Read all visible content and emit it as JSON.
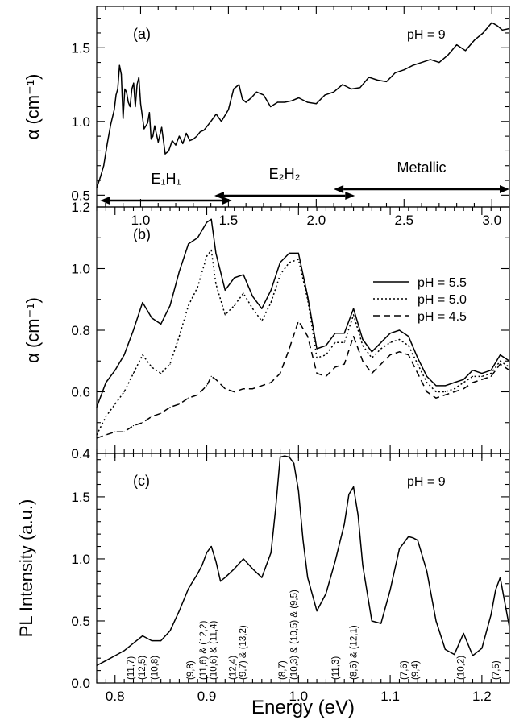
{
  "figure": {
    "xlabel_bottom": "Energy (eV)"
  },
  "chart_data": [
    {
      "panel": "(a)",
      "type": "line",
      "annotation": "pH = 9",
      "ylabel": "α (cm⁻¹)",
      "xlim": [
        0.75,
        3.1
      ],
      "ylim": [
        0.42,
        1.78
      ],
      "xticks": [
        1.0,
        1.5,
        2.0,
        2.5,
        3.0
      ],
      "xtick_labels": [
        "1.0",
        "1.5",
        "2.0",
        "2.5",
        "3.0"
      ],
      "yticks": [
        0.5,
        1.0,
        1.5
      ],
      "ytick_labels": [
        "0.5",
        "1.0",
        "1.5"
      ],
      "regions": [
        {
          "label": "E₁H₁",
          "x_start": 0.77,
          "x_end": 1.52
        },
        {
          "label": "E₂H₂",
          "x_start": 1.42,
          "x_end": 2.22
        },
        {
          "label": "Metallic",
          "x_start": 2.1,
          "x_end": 3.1
        }
      ],
      "series": [
        {
          "style": "solid",
          "x": [
            0.75,
            0.77,
            0.79,
            0.81,
            0.83,
            0.85,
            0.86,
            0.87,
            0.88,
            0.89,
            0.9,
            0.91,
            0.92,
            0.93,
            0.94,
            0.95,
            0.96,
            0.97,
            0.98,
            0.99,
            1.0,
            1.02,
            1.04,
            1.05,
            1.06,
            1.07,
            1.08,
            1.1,
            1.12,
            1.14,
            1.16,
            1.18,
            1.2,
            1.22,
            1.24,
            1.26,
            1.28,
            1.3,
            1.32,
            1.34,
            1.36,
            1.38,
            1.4,
            1.43,
            1.46,
            1.5,
            1.53,
            1.56,
            1.58,
            1.6,
            1.63,
            1.66,
            1.7,
            1.74,
            1.78,
            1.82,
            1.86,
            1.9,
            1.95,
            2.0,
            2.05,
            2.1,
            2.15,
            2.2,
            2.25,
            2.3,
            2.35,
            2.4,
            2.45,
            2.5,
            2.55,
            2.6,
            2.65,
            2.7,
            2.75,
            2.8,
            2.85,
            2.9,
            2.95,
            3.0,
            3.03,
            3.06,
            3.1
          ],
          "y": [
            0.55,
            0.62,
            0.7,
            0.85,
            0.98,
            1.08,
            1.18,
            1.22,
            1.38,
            1.32,
            1.02,
            1.22,
            1.2,
            1.13,
            1.1,
            1.22,
            1.26,
            1.1,
            1.25,
            1.3,
            1.12,
            0.95,
            0.99,
            1.06,
            0.88,
            0.9,
            0.97,
            0.86,
            0.96,
            0.78,
            0.8,
            0.87,
            0.84,
            0.9,
            0.85,
            0.92,
            0.87,
            0.88,
            0.9,
            0.93,
            0.94,
            0.97,
            1.0,
            1.05,
            1.0,
            1.08,
            1.22,
            1.25,
            1.15,
            1.13,
            1.16,
            1.2,
            1.18,
            1.1,
            1.13,
            1.13,
            1.14,
            1.16,
            1.13,
            1.12,
            1.18,
            1.2,
            1.25,
            1.22,
            1.23,
            1.3,
            1.28,
            1.27,
            1.33,
            1.35,
            1.38,
            1.4,
            1.42,
            1.4,
            1.45,
            1.52,
            1.48,
            1.55,
            1.6,
            1.67,
            1.65,
            1.62,
            1.63
          ]
        }
      ]
    },
    {
      "panel": "(b)",
      "type": "line",
      "ylabel": "α (cm⁻¹)",
      "xlim": [
        0.78,
        1.23
      ],
      "ylim": [
        0.4,
        1.2
      ],
      "yticks": [
        0.4,
        0.6,
        0.8,
        1.0,
        1.2
      ],
      "ytick_labels": [
        "0.4",
        "0.6",
        "0.8",
        "1.0",
        "1.2"
      ],
      "x": [
        0.78,
        0.79,
        0.8,
        0.81,
        0.82,
        0.83,
        0.84,
        0.85,
        0.86,
        0.87,
        0.88,
        0.89,
        0.9,
        0.905,
        0.91,
        0.92,
        0.93,
        0.94,
        0.95,
        0.96,
        0.97,
        0.98,
        0.99,
        1.0,
        1.01,
        1.02,
        1.03,
        1.04,
        1.05,
        1.06,
        1.07,
        1.08,
        1.09,
        1.1,
        1.11,
        1.12,
        1.13,
        1.14,
        1.15,
        1.16,
        1.17,
        1.18,
        1.19,
        1.2,
        1.21,
        1.22,
        1.23
      ],
      "series": [
        {
          "name": "pH = 5.5",
          "style": "solid",
          "values": [
            0.55,
            0.63,
            0.67,
            0.72,
            0.8,
            0.89,
            0.84,
            0.82,
            0.88,
            0.99,
            1.08,
            1.1,
            1.15,
            1.16,
            1.05,
            0.93,
            0.97,
            0.98,
            0.91,
            0.87,
            0.93,
            1.02,
            1.05,
            1.05,
            0.91,
            0.74,
            0.75,
            0.79,
            0.79,
            0.87,
            0.77,
            0.73,
            0.76,
            0.79,
            0.8,
            0.78,
            0.71,
            0.65,
            0.62,
            0.62,
            0.63,
            0.64,
            0.67,
            0.66,
            0.67,
            0.72,
            0.7
          ]
        },
        {
          "name": "pH = 5.0",
          "style": "dotted",
          "values": [
            0.46,
            0.52,
            0.56,
            0.6,
            0.66,
            0.72,
            0.68,
            0.66,
            0.69,
            0.78,
            0.88,
            0.94,
            1.04,
            1.06,
            0.95,
            0.85,
            0.88,
            0.92,
            0.87,
            0.83,
            0.89,
            0.98,
            1.02,
            1.03,
            0.9,
            0.71,
            0.72,
            0.76,
            0.76,
            0.85,
            0.75,
            0.71,
            0.74,
            0.76,
            0.77,
            0.75,
            0.69,
            0.63,
            0.6,
            0.6,
            0.61,
            0.63,
            0.65,
            0.65,
            0.66,
            0.7,
            0.68
          ]
        },
        {
          "name": "pH = 4.5",
          "style": "dashed",
          "values": [
            0.45,
            0.46,
            0.47,
            0.47,
            0.49,
            0.5,
            0.52,
            0.53,
            0.55,
            0.56,
            0.58,
            0.59,
            0.62,
            0.65,
            0.64,
            0.61,
            0.6,
            0.61,
            0.61,
            0.62,
            0.63,
            0.66,
            0.74,
            0.83,
            0.78,
            0.66,
            0.65,
            0.68,
            0.69,
            0.78,
            0.7,
            0.66,
            0.69,
            0.72,
            0.73,
            0.72,
            0.66,
            0.6,
            0.58,
            0.59,
            0.6,
            0.61,
            0.63,
            0.64,
            0.65,
            0.69,
            0.67
          ]
        }
      ]
    },
    {
      "panel": "(c)",
      "type": "line",
      "annotation": "pH = 9",
      "ylabel": "PL Intensity (a.u.)",
      "xlabel": "Energy (eV)",
      "xlim": [
        0.78,
        1.23
      ],
      "ylim": [
        0.0,
        1.85
      ],
      "xticks": [
        0.8,
        0.9,
        1.0,
        1.1,
        1.2
      ],
      "xtick_labels": [
        "0.8",
        "0.9",
        "1.0",
        "1.1",
        "1.2"
      ],
      "yticks": [
        0.0,
        0.5,
        1.0,
        1.5
      ],
      "ytick_labels": [
        "0.0",
        "0.5",
        "1.0",
        "1.5"
      ],
      "series": [
        {
          "style": "solid",
          "x": [
            0.78,
            0.79,
            0.8,
            0.81,
            0.82,
            0.83,
            0.84,
            0.85,
            0.86,
            0.87,
            0.88,
            0.89,
            0.895,
            0.9,
            0.905,
            0.91,
            0.915,
            0.92,
            0.93,
            0.94,
            0.95,
            0.96,
            0.97,
            0.975,
            0.98,
            0.985,
            0.99,
            0.995,
            1.0,
            1.005,
            1.01,
            1.02,
            1.03,
            1.04,
            1.05,
            1.055,
            1.06,
            1.065,
            1.07,
            1.08,
            1.09,
            1.1,
            1.11,
            1.12,
            1.125,
            1.13,
            1.14,
            1.15,
            1.16,
            1.17,
            1.18,
            1.19,
            1.2,
            1.21,
            1.215,
            1.22,
            1.23
          ],
          "y": [
            0.14,
            0.18,
            0.22,
            0.26,
            0.32,
            0.38,
            0.34,
            0.34,
            0.42,
            0.58,
            0.76,
            0.88,
            0.95,
            1.05,
            1.1,
            0.98,
            0.82,
            0.85,
            0.92,
            1.0,
            0.92,
            0.85,
            1.05,
            1.4,
            1.82,
            1.83,
            1.82,
            1.77,
            1.55,
            1.15,
            0.85,
            0.58,
            0.72,
            0.98,
            1.28,
            1.52,
            1.58,
            1.35,
            0.95,
            0.5,
            0.48,
            0.75,
            1.08,
            1.18,
            1.17,
            1.15,
            0.9,
            0.5,
            0.27,
            0.23,
            0.4,
            0.22,
            0.28,
            0.55,
            0.75,
            0.85,
            0.45
          ]
        }
      ],
      "peak_assignments": [
        {
          "label": "(11,7)",
          "x": 0.817
        },
        {
          "label": "(12,5)",
          "x": 0.829
        },
        {
          "label": "(10,8)",
          "x": 0.843
        },
        {
          "label": "(9,8)",
          "x": 0.882
        },
        {
          "label": "(11,6) & (12,2)",
          "x": 0.896
        },
        {
          "label": "(10,6) & (11,4)",
          "x": 0.907
        },
        {
          "label": "(12,4)",
          "x": 0.928
        },
        {
          "label": "(9,7) & (13,2)",
          "x": 0.939
        },
        {
          "label": "(8,7)",
          "x": 0.982
        },
        {
          "label": "(10,3) & (10,5) & (9,5)",
          "x": 0.995
        },
        {
          "label": "(11,3)",
          "x": 1.04
        },
        {
          "label": "(8,6) & (12,1)",
          "x": 1.06
        },
        {
          "label": "(7,6)",
          "x": 1.115
        },
        {
          "label": "(9,4)",
          "x": 1.127
        },
        {
          "label": "(10,2)",
          "x": 1.177
        },
        {
          "label": "(7,5)",
          "x": 1.215
        }
      ]
    }
  ]
}
